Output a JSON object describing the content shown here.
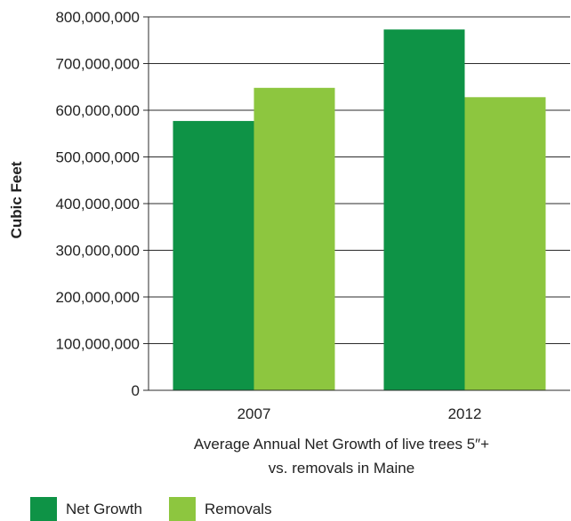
{
  "chart_data": {
    "type": "bar",
    "categories": [
      "2007",
      "2012"
    ],
    "series": [
      {
        "name": "Net Growth",
        "values": [
          577000000,
          773000000
        ],
        "color": "#0e9346"
      },
      {
        "name": "Removals",
        "values": [
          648000000,
          628000000
        ],
        "color": "#8dc63f"
      }
    ],
    "title": "",
    "ylabel": "Cubic Feet",
    "xlabel_lines": [
      "Average Annual Net Growth of live trees 5″+",
      "vs. removals in Maine"
    ],
    "ylim": [
      0,
      800000000
    ],
    "yticks": [
      0,
      100000000,
      200000000,
      300000000,
      400000000,
      500000000,
      600000000,
      700000000,
      800000000
    ],
    "ytick_labels": [
      "0",
      "100,000,000",
      "200,000,000",
      "300,000,000",
      "400,000,000",
      "500,000,000",
      "600,000,000",
      "700,000,000",
      "800,000,000"
    ],
    "grid": true,
    "legend_position": "bottom-left"
  }
}
